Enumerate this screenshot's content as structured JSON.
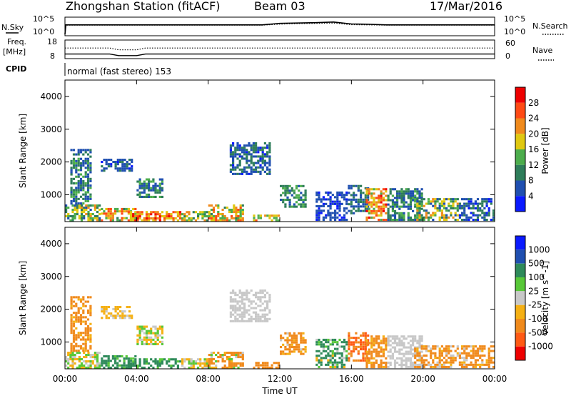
{
  "header": {
    "station_title": "Zhongshan Station (fitACF)",
    "beam_label": "Beam 03",
    "date_label": "17/Mar/2016"
  },
  "status_panels": {
    "nsky_label": "N.Sky",
    "nsky_top_tick": "10^5",
    "nsky_bottom_tick": "10^0",
    "nsearch_label": "N.Search",
    "nsearch_top_tick": "10^5",
    "nsearch_bottom_tick": "10^0",
    "freq_label_line1": "Freq.",
    "freq_label_line2": "[MHz]",
    "freq_top_tick": "18",
    "freq_bottom_tick": "8",
    "nave_label": "Nave",
    "nave_top_tick": "60",
    "nave_bottom_tick": "0",
    "cpid_label": "CPID",
    "cpid_text": "normal (fast stereo) 153"
  },
  "colors": {
    "power_scale": [
      "#0a1aff",
      "#1f4fb0",
      "#2e7d5a",
      "#4cad4c",
      "#e0c810",
      "#f08a1c",
      "#ff4a14",
      "#ee0000"
    ],
    "velocity_scale": [
      "#ee0000",
      "#ff5a14",
      "#f08a1c",
      "#f5b014",
      "#c8c8c8",
      "#58c838",
      "#2e8a5a",
      "#1f4fb0",
      "#0a1aff"
    ]
  },
  "chart_data": [
    {
      "type": "line",
      "name": "nsky-nsearch",
      "x": [
        0,
        0.05,
        2,
        4,
        6,
        8,
        10,
        11,
        12,
        13,
        14,
        15,
        16,
        17,
        18,
        20,
        22,
        24
      ],
      "series": [
        {
          "name": "N.Sky",
          "values": [
            1,
            1000,
            1000,
            1000,
            1000,
            1000,
            1000,
            1000,
            3000,
            4000,
            5000,
            8000,
            2000,
            1500,
            1000,
            1000,
            1000,
            1000
          ]
        },
        {
          "name": "N.Search",
          "values": [
            1,
            800,
            800,
            800,
            800,
            800,
            800,
            800,
            1800,
            2500,
            3000,
            4000,
            1200,
            1000,
            800,
            800,
            800,
            800
          ]
        }
      ],
      "xlim": [
        0,
        24
      ],
      "ylim": [
        1,
        100000
      ],
      "yscale": "log",
      "xlabel": "",
      "ylabel": "N.Sky"
    },
    {
      "type": "line",
      "name": "freq-nave",
      "x": [
        0,
        2.5,
        3.0,
        3.5,
        4.0,
        4.5,
        6,
        12,
        18,
        24
      ],
      "series": [
        {
          "name": "Freq.",
          "values": [
            10,
            10,
            9,
            9,
            9,
            10,
            10,
            10,
            10,
            10
          ]
        },
        {
          "name": "Nave",
          "values": [
            35,
            35,
            28,
            28,
            28,
            35,
            35,
            35,
            35,
            35
          ]
        }
      ],
      "xlim": [
        0,
        24
      ],
      "ylim_freq": [
        8,
        18
      ],
      "ylim_nave": [
        0,
        60
      ],
      "xlabel": "",
      "ylabel": "Freq. [MHz]"
    },
    {
      "type": "heatmap",
      "name": "power-rti",
      "ylabel": "Slant Range [km]",
      "xlabel": "",
      "xlim": [
        0,
        24
      ],
      "ylim": [
        180,
        4500
      ],
      "x_ticks": [],
      "y_ticks": [
        1000,
        2000,
        3000,
        4000
      ],
      "colorbar": {
        "label": "Power [dB]",
        "ticks": [
          4,
          8,
          12,
          16,
          20,
          24,
          28
        ],
        "range": [
          0,
          32
        ]
      },
      "regions": [
        {
          "t0": 0.0,
          "t1": 2.0,
          "r0": 180,
          "r1": 700,
          "v0": 6,
          "v1": 22
        },
        {
          "t0": 0.3,
          "t1": 1.5,
          "r0": 700,
          "r1": 2400,
          "v0": 4,
          "v1": 14
        },
        {
          "t0": 2.0,
          "t1": 4.0,
          "r0": 180,
          "r1": 600,
          "v0": 10,
          "v1": 28
        },
        {
          "t0": 2.0,
          "t1": 3.8,
          "r0": 1700,
          "r1": 2100,
          "v0": 3,
          "v1": 10
        },
        {
          "t0": 3.5,
          "t1": 6.5,
          "r0": 180,
          "r1": 500,
          "v0": 16,
          "v1": 30
        },
        {
          "t0": 4.0,
          "t1": 5.5,
          "r0": 900,
          "r1": 1500,
          "v0": 4,
          "v1": 14
        },
        {
          "t0": 6.5,
          "t1": 8.0,
          "r0": 180,
          "r1": 500,
          "v0": 8,
          "v1": 22
        },
        {
          "t0": 8.0,
          "t1": 10.0,
          "r0": 180,
          "r1": 700,
          "v0": 10,
          "v1": 28
        },
        {
          "t0": 9.2,
          "t1": 11.5,
          "r0": 1600,
          "r1": 2600,
          "v0": 3,
          "v1": 12
        },
        {
          "t0": 10.5,
          "t1": 12.0,
          "r0": 180,
          "r1": 400,
          "v0": 12,
          "v1": 26
        },
        {
          "t0": 12.0,
          "t1": 13.5,
          "r0": 600,
          "r1": 1300,
          "v0": 6,
          "v1": 16
        },
        {
          "t0": 14.0,
          "t1": 15.8,
          "r0": 200,
          "r1": 1100,
          "v0": 3,
          "v1": 8
        },
        {
          "t0": 15.8,
          "t1": 17.0,
          "r0": 400,
          "r1": 1300,
          "v0": 4,
          "v1": 12
        },
        {
          "t0": 16.8,
          "t1": 18.0,
          "r0": 200,
          "r1": 1200,
          "v0": 14,
          "v1": 30
        },
        {
          "t0": 18.0,
          "t1": 20.0,
          "r0": 200,
          "r1": 1200,
          "v0": 4,
          "v1": 14
        },
        {
          "t0": 19.5,
          "t1": 22.0,
          "r0": 200,
          "r1": 900,
          "v0": 6,
          "v1": 22
        },
        {
          "t0": 22.0,
          "t1": 24.0,
          "r0": 200,
          "r1": 900,
          "v0": 3,
          "v1": 10
        }
      ]
    },
    {
      "type": "heatmap",
      "name": "velocity-rti",
      "ylabel": "Slant Range [km]",
      "xlabel": "Time UT",
      "xlim": [
        0,
        24
      ],
      "ylim": [
        180,
        4500
      ],
      "x_ticks": [
        "00:00",
        "04:00",
        "08:00",
        "12:00",
        "16:00",
        "20:00",
        "00:00"
      ],
      "y_ticks": [
        1000,
        2000,
        3000,
        4000
      ],
      "colorbar": {
        "label": "Velocity [m s^-1]",
        "ticks": [
          1000,
          500,
          100,
          25,
          -25,
          -100,
          -500,
          -1000
        ]
      },
      "regions": [
        {
          "t0": 0.0,
          "t1": 2.0,
          "r0": 180,
          "r1": 700,
          "v0": -100,
          "v1": 100
        },
        {
          "t0": 0.3,
          "t1": 1.5,
          "r0": 700,
          "r1": 2400,
          "v0": -500,
          "v1": -25
        },
        {
          "t0": 2.0,
          "t1": 4.0,
          "r0": 180,
          "r1": 600,
          "v0": 25,
          "v1": 500
        },
        {
          "t0": 2.0,
          "t1": 3.8,
          "r0": 1700,
          "r1": 2100,
          "v0": -100,
          "v1": 25
        },
        {
          "t0": 3.5,
          "t1": 6.5,
          "r0": 180,
          "r1": 500,
          "v0": 25,
          "v1": 500
        },
        {
          "t0": 4.0,
          "t1": 5.5,
          "r0": 900,
          "r1": 1500,
          "v0": -100,
          "v1": 100
        },
        {
          "t0": 6.5,
          "t1": 8.0,
          "r0": 180,
          "r1": 500,
          "v0": -100,
          "v1": 100
        },
        {
          "t0": 8.0,
          "t1": 10.0,
          "r0": 180,
          "r1": 700,
          "v0": -500,
          "v1": 100
        },
        {
          "t0": 9.2,
          "t1": 11.5,
          "r0": 1600,
          "r1": 2600,
          "v0": -25,
          "v1": 25
        },
        {
          "t0": 10.5,
          "t1": 12.0,
          "r0": 180,
          "r1": 400,
          "v0": -500,
          "v1": -100
        },
        {
          "t0": 12.0,
          "t1": 13.5,
          "r0": 600,
          "r1": 1300,
          "v0": -500,
          "v1": 25
        },
        {
          "t0": 14.0,
          "t1": 15.8,
          "r0": 200,
          "r1": 1100,
          "v0": -100,
          "v1": 500
        },
        {
          "t0": 15.8,
          "t1": 17.0,
          "r0": 400,
          "r1": 1300,
          "v0": -1000,
          "v1": -100
        },
        {
          "t0": 16.8,
          "t1": 18.0,
          "r0": 200,
          "r1": 1200,
          "v0": -500,
          "v1": -25
        },
        {
          "t0": 18.0,
          "t1": 20.0,
          "r0": 200,
          "r1": 1200,
          "v0": -25,
          "v1": 25
        },
        {
          "t0": 19.5,
          "t1": 22.0,
          "r0": 200,
          "r1": 900,
          "v0": -500,
          "v1": 25
        },
        {
          "t0": 22.0,
          "t1": 24.0,
          "r0": 200,
          "r1": 900,
          "v0": -500,
          "v1": 25
        }
      ]
    }
  ]
}
